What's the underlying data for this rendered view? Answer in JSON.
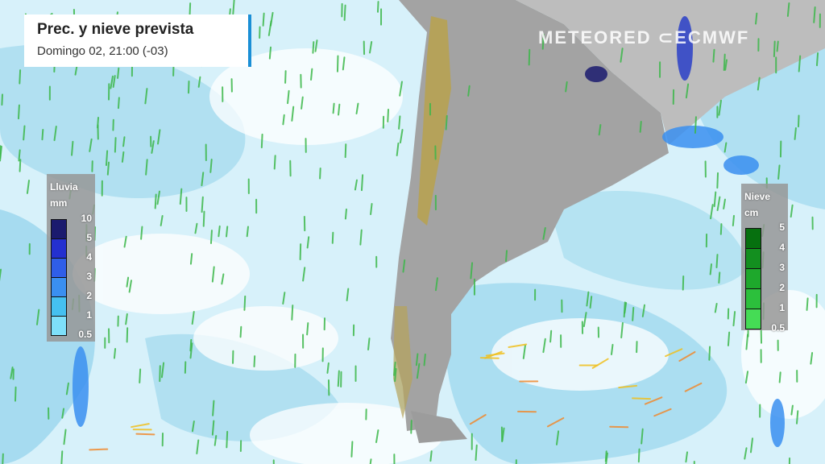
{
  "header": {
    "title": "Prec. y nieve prevista",
    "subtitle": "Domingo 02, 21:00 (-03)"
  },
  "branding": {
    "logo": "METEORED ⊂ECMWF"
  },
  "rain_legend": {
    "title": "Lluvia",
    "unit": "mm",
    "ticks": [
      "10",
      "5",
      "4",
      "3",
      "2",
      "1",
      "0.5"
    ],
    "colors": [
      "#1b1b6e",
      "#2430d0",
      "#2f5ee8",
      "#3a8ff0",
      "#45c0f0",
      "#7ee0fa"
    ]
  },
  "snow_legend": {
    "title": "Nieve",
    "unit": "cm",
    "ticks": [
      "5",
      "4",
      "3",
      "2",
      "1",
      "0.5"
    ],
    "colors": [
      "#06700f",
      "#138f1f",
      "#1ea82c",
      "#2cc03c",
      "#45dc55"
    ]
  },
  "map_colors": {
    "ocean": "#d7f1fa",
    "cloud": "#ffffff",
    "precip_light": "#9ad6ee",
    "land": "#9c9c9c",
    "andes": "#b5a25a",
    "wind_weak": "#3cb84a",
    "wind_strong": "#f0c020"
  }
}
